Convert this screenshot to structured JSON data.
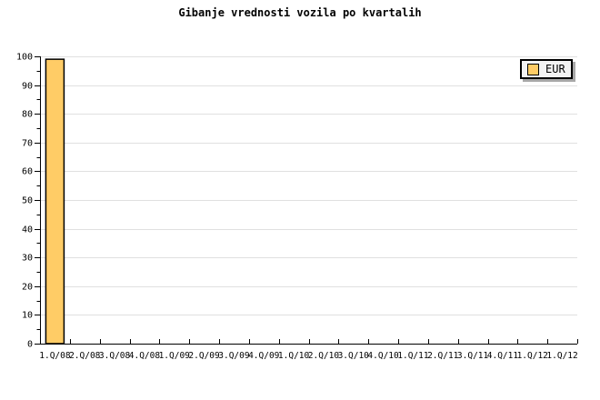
{
  "chart_data": {
    "type": "bar",
    "title": "Gibanje vrednosti vozila po kvartalih",
    "categories": [
      "1.Q/08",
      "2.Q/08",
      "3.Q/08",
      "4.Q/08",
      "1.Q/09",
      "2.Q/09",
      "3.Q/09",
      "4.Q/09",
      "1.Q/10",
      "2.Q/10",
      "3.Q/10",
      "4.Q/10",
      "1.Q/11",
      "2.Q/11",
      "3.Q/11",
      "4.Q/11",
      "1.Q/12",
      "1.Q/12"
    ],
    "series": [
      {
        "name": "EUR",
        "values": [
          99,
          null,
          null,
          null,
          null,
          null,
          null,
          null,
          null,
          null,
          null,
          null,
          null,
          null,
          null,
          null,
          null,
          null
        ]
      }
    ],
    "xlabel": "",
    "ylabel": "",
    "ylim": [
      0,
      100
    ],
    "y_major_step": 10,
    "y_minor_step": 5,
    "y_tick_labels": [
      "0",
      "10",
      "20",
      "30",
      "40",
      "50",
      "60",
      "70",
      "80",
      "90",
      "100"
    ],
    "grid": "horizontal-major-only",
    "legend": {
      "position": "top-right",
      "entries": [
        {
          "label": "EUR",
          "swatch_color": "#FFCC66"
        }
      ]
    },
    "colors": {
      "background": "#FFFFFF",
      "bar_fill": "#FFCC66",
      "bar_stroke": "#000000",
      "axis": "#000000",
      "grid": "#E0E0E0",
      "legend_bg": "#F2F2F2",
      "legend_shadow": "#A8A8A8",
      "text": "#000000"
    }
  }
}
